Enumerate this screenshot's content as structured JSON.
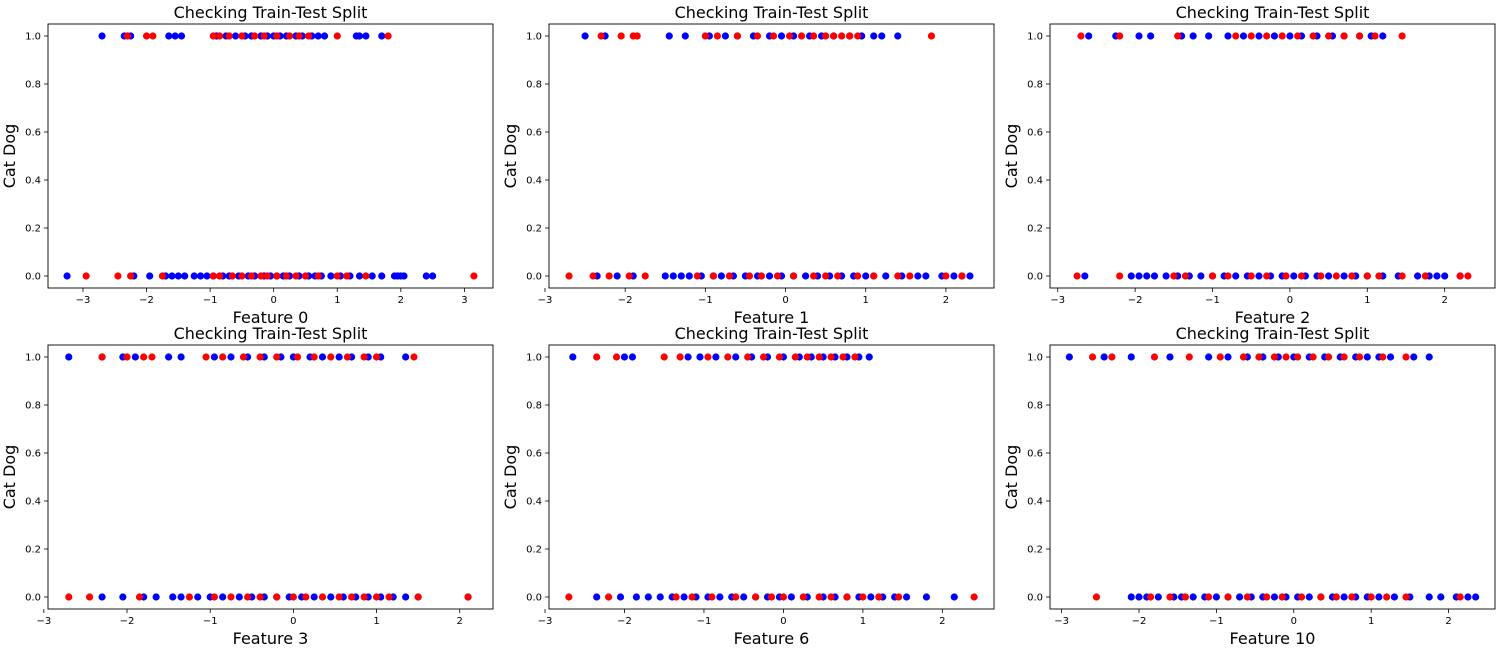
{
  "colors": {
    "train": "#0000ff",
    "test": "#ff0000",
    "axis": "#000000",
    "background": "#ffffff"
  },
  "chart_data": [
    {
      "type": "scatter",
      "title": "Checking Train-Test Split",
      "xlabel": "Feature 0",
      "ylabel": "Cat    Dog",
      "xlim": [
        -3.55,
        3.45
      ],
      "ylim": [
        -0.05,
        1.05
      ],
      "xticks": [
        -3,
        -2,
        -1,
        0,
        1,
        2,
        3
      ],
      "yticks": [
        0.0,
        0.2,
        0.4,
        0.6,
        0.8,
        1.0
      ],
      "ytick_labels": [
        "0.0",
        "0.2",
        "0.4",
        "0.6",
        "0.8",
        "1.0"
      ],
      "grid": false,
      "series": [
        {
          "color": "#0000ff",
          "x1": [
            -2.7,
            -2.35,
            -2.25,
            -1.65,
            -1.55,
            -1.45,
            -0.9,
            -0.75,
            -0.6,
            -0.45,
            -0.35,
            -0.2,
            -0.1,
            0.0,
            0.1,
            0.2,
            0.35,
            0.45,
            0.6,
            0.7,
            0.8,
            1.3,
            1.35,
            1.45,
            1.7
          ],
          "x0": [
            -3.25,
            -2.2,
            -1.95,
            -1.7,
            -1.6,
            -1.5,
            -1.4,
            -1.25,
            -1.15,
            -1.05,
            -0.95,
            -0.8,
            -0.7,
            -0.55,
            -0.4,
            -0.3,
            -0.15,
            -0.05,
            0.05,
            0.15,
            0.25,
            0.4,
            0.55,
            0.65,
            0.75,
            0.9,
            1.05,
            1.2,
            1.35,
            1.55,
            1.7,
            1.9,
            1.95,
            2.0,
            2.05,
            2.4,
            2.5
          ]
        },
        {
          "color": "#ff0000",
          "x1": [
            -2.3,
            -2.0,
            -1.9,
            -0.95,
            -0.85,
            -0.7,
            -0.5,
            -0.3,
            -0.15,
            0.05,
            0.25,
            0.4,
            0.55,
            1.0,
            1.8
          ],
          "x0": [
            -2.95,
            -2.45,
            -2.25,
            -1.75,
            -0.95,
            -0.85,
            -0.65,
            -0.5,
            -0.35,
            -0.2,
            -0.1,
            0.05,
            0.2,
            0.35,
            0.5,
            0.7,
            1.0,
            1.15,
            1.45,
            3.15
          ]
        }
      ]
    },
    {
      "type": "scatter",
      "title": "Checking Train-Test Split",
      "xlabel": "Feature 1",
      "ylabel": "Cat    Dog",
      "xlim": [
        -2.95,
        2.6
      ],
      "ylim": [
        -0.05,
        1.05
      ],
      "xticks": [
        -3,
        -2,
        -1,
        0,
        1,
        2
      ],
      "yticks": [
        0.0,
        0.2,
        0.4,
        0.6,
        0.8,
        1.0
      ],
      "ytick_labels": [
        "0.0",
        "0.2",
        "0.4",
        "0.6",
        "0.8",
        "1.0"
      ],
      "grid": false,
      "series": [
        {
          "color": "#0000ff",
          "x1": [
            -2.5,
            -2.25,
            -1.45,
            -1.25,
            -0.95,
            -0.75,
            -0.6,
            -0.4,
            -0.2,
            -0.05,
            0.1,
            0.3,
            0.45,
            0.6,
            0.8,
            0.95,
            1.1,
            1.2,
            1.4
          ],
          "x0": [
            -2.35,
            -2.1,
            -1.9,
            -1.5,
            -1.4,
            -1.3,
            -1.2,
            -1.05,
            -0.9,
            -0.8,
            -0.65,
            -0.5,
            -0.35,
            -0.2,
            -0.05,
            0.1,
            0.25,
            0.4,
            0.55,
            0.7,
            0.85,
            1.0,
            1.1,
            1.25,
            1.45,
            1.65,
            1.75,
            1.95,
            2.1,
            2.2,
            2.3
          ]
        },
        {
          "color": "#ff0000",
          "x1": [
            -2.3,
            -2.05,
            -1.9,
            -1.85,
            -1.0,
            -0.85,
            -0.6,
            -0.35,
            -0.15,
            0.05,
            0.2,
            0.35,
            0.5,
            0.6,
            0.7,
            0.8,
            0.9,
            1.82
          ],
          "x0": [
            -2.7,
            -2.4,
            -2.2,
            -1.95,
            -1.75,
            -1.1,
            -0.9,
            -0.7,
            -0.45,
            -0.3,
            -0.1,
            0.1,
            0.35,
            0.5,
            0.65,
            0.9,
            1.1,
            1.4,
            1.55,
            2.0,
            2.2
          ]
        }
      ]
    },
    {
      "type": "scatter",
      "title": "Checking Train-Test Split",
      "xlabel": "Feature 2",
      "ylabel": "Cat    Dog",
      "xlim": [
        -3.1,
        2.65
      ],
      "ylim": [
        -0.05,
        1.05
      ],
      "xticks": [
        -3,
        -2,
        -1,
        0,
        1,
        2
      ],
      "yticks": [
        0.0,
        0.2,
        0.4,
        0.6,
        0.8,
        1.0
      ],
      "ytick_labels": [
        "0.0",
        "0.2",
        "0.4",
        "0.6",
        "0.8",
        "1.0"
      ],
      "grid": false,
      "series": [
        {
          "color": "#0000ff",
          "x1": [
            -2.6,
            -2.25,
            -1.95,
            -1.8,
            -1.4,
            -1.25,
            -1.05,
            -0.8,
            -0.6,
            -0.4,
            -0.2,
            0.0,
            0.15,
            0.35,
            0.55,
            0.7,
            0.9,
            1.05,
            1.2
          ],
          "x0": [
            -2.65,
            -2.05,
            -1.95,
            -1.85,
            -1.75,
            -1.6,
            -1.45,
            -1.3,
            -1.15,
            -1.0,
            -0.85,
            -0.7,
            -0.55,
            -0.4,
            -0.25,
            -0.1,
            0.05,
            0.2,
            0.35,
            0.5,
            0.7,
            0.85,
            1.0,
            1.2,
            1.4,
            1.65,
            1.8,
            1.9,
            2.0,
            2.2
          ]
        },
        {
          "color": "#ff0000",
          "x1": [
            -2.7,
            -2.2,
            -1.45,
            -0.7,
            -0.5,
            -0.3,
            -0.1,
            0.1,
            0.3,
            0.5,
            0.7,
            0.9,
            1.1,
            1.45
          ],
          "x0": [
            -2.75,
            -2.2,
            -1.5,
            -1.35,
            -1.0,
            -0.8,
            -0.5,
            -0.3,
            -0.05,
            0.15,
            0.4,
            0.6,
            0.8,
            1.0,
            1.15,
            1.45,
            1.75,
            2.2,
            2.3
          ]
        }
      ]
    },
    {
      "type": "scatter",
      "title": "Checking Train-Test Split",
      "xlabel": "Feature 3",
      "ylabel": "Cat    Dog",
      "xlim": [
        -2.95,
        2.4
      ],
      "ylim": [
        -0.05,
        1.05
      ],
      "xticks": [
        -3,
        -2,
        -1,
        0,
        1,
        2
      ],
      "yticks": [
        0.0,
        0.2,
        0.4,
        0.6,
        0.8,
        1.0
      ],
      "ytick_labels": [
        "0.0",
        "0.2",
        "0.4",
        "0.6",
        "0.8",
        "1.0"
      ],
      "grid": false,
      "series": [
        {
          "color": "#0000ff",
          "x1": [
            -2.7,
            -2.3,
            -2.05,
            -1.9,
            -1.5,
            -1.35,
            -0.95,
            -0.75,
            -0.55,
            -0.35,
            -0.15,
            0.0,
            0.2,
            0.35,
            0.55,
            0.7,
            0.9,
            1.05,
            1.35
          ],
          "x0": [
            -2.3,
            -2.05,
            -1.8,
            -1.65,
            -1.45,
            -1.35,
            -1.15,
            -1.0,
            -0.85,
            -0.65,
            -0.5,
            -0.35,
            -0.2,
            -0.05,
            0.1,
            0.25,
            0.45,
            0.6,
            0.75,
            0.9,
            1.05,
            1.2,
            1.35,
            1.5,
            2.1
          ]
        },
        {
          "color": "#ff0000",
          "x1": [
            -2.3,
            -2.0,
            -1.8,
            -1.7,
            -1.05,
            -0.85,
            -0.6,
            -0.4,
            -0.2,
            0.05,
            0.25,
            0.45,
            0.65,
            0.85,
            1.0,
            1.45
          ],
          "x0": [
            -2.7,
            -2.45,
            -1.85,
            -1.25,
            -0.95,
            -0.75,
            -0.55,
            -0.4,
            -0.2,
            0.0,
            0.15,
            0.35,
            0.55,
            0.7,
            0.85,
            1.0,
            1.15,
            1.5,
            2.1
          ]
        }
      ]
    },
    {
      "type": "scatter",
      "title": "Checking Train-Test Split",
      "xlabel": "Feature 6",
      "ylabel": "Cat    Dog",
      "xlim": [
        -2.95,
        2.65
      ],
      "ylim": [
        -0.05,
        1.05
      ],
      "xticks": [
        -3,
        -2,
        -1,
        0,
        1,
        2
      ],
      "yticks": [
        0.0,
        0.2,
        0.4,
        0.6,
        0.8,
        1.0
      ],
      "ytick_labels": [
        "0.0",
        "0.2",
        "0.4",
        "0.6",
        "0.8",
        "1.0"
      ],
      "grid": false,
      "series": [
        {
          "color": "#0000ff",
          "x1": [
            -2.65,
            -2.0,
            -1.9,
            -1.2,
            -1.05,
            -0.85,
            -0.6,
            -0.4,
            -0.2,
            0.0,
            0.2,
            0.35,
            0.5,
            0.65,
            0.8,
            0.95,
            1.08
          ],
          "x0": [
            -2.35,
            -2.05,
            -1.85,
            -1.7,
            -1.55,
            -1.4,
            -1.25,
            -1.1,
            -0.95,
            -0.8,
            -0.65,
            -0.5,
            -0.35,
            -0.2,
            -0.05,
            0.1,
            0.3,
            0.5,
            0.65,
            0.8,
            0.95,
            1.1,
            1.25,
            1.4,
            1.55,
            1.8,
            2.15
          ]
        },
        {
          "color": "#ff0000",
          "x1": [
            -2.35,
            -2.1,
            -1.5,
            -1.3,
            -0.95,
            -0.7,
            -0.45,
            -0.25,
            -0.05,
            0.15,
            0.3,
            0.45,
            0.6,
            0.75,
            0.9
          ],
          "x0": [
            -2.7,
            -2.2,
            -1.35,
            -1.15,
            -0.9,
            -0.6,
            -0.35,
            -0.15,
            0.0,
            0.25,
            0.45,
            0.6,
            0.8,
            1.0,
            1.2,
            1.45,
            2.4
          ]
        }
      ]
    },
    {
      "type": "scatter",
      "title": "Checking Train-Test Split",
      "xlabel": "Feature 10",
      "ylabel": "Cat    Dog",
      "xlim": [
        -3.15,
        2.6
      ],
      "ylim": [
        -0.05,
        1.05
      ],
      "xticks": [
        -3,
        -2,
        -1,
        0,
        1,
        2
      ],
      "yticks": [
        0.0,
        0.2,
        0.4,
        0.6,
        0.8,
        1.0
      ],
      "ytick_labels": [
        "0.0",
        "0.2",
        "0.4",
        "0.6",
        "0.8",
        "1.0"
      ],
      "grid": false,
      "series": [
        {
          "color": "#0000ff",
          "x1": [
            -2.9,
            -2.45,
            -2.1,
            -1.6,
            -1.1,
            -0.85,
            -0.6,
            -0.4,
            -0.2,
            0.0,
            0.2,
            0.4,
            0.6,
            0.8,
            0.95,
            1.1,
            1.25,
            1.55,
            1.75
          ],
          "x0": [
            -2.1,
            -2.0,
            -1.9,
            -1.75,
            -1.55,
            -1.45,
            -1.3,
            -1.15,
            -1.0,
            -0.85,
            -0.7,
            -0.55,
            -0.4,
            -0.25,
            -0.1,
            0.05,
            0.2,
            0.35,
            0.5,
            0.65,
            0.8,
            0.95,
            1.1,
            1.3,
            1.5,
            1.75,
            1.9,
            2.1,
            2.25,
            2.35
          ]
        },
        {
          "color": "#ff0000",
          "x1": [
            -2.6,
            -2.35,
            -1.8,
            -1.35,
            -0.95,
            -0.65,
            -0.45,
            -0.25,
            -0.1,
            0.05,
            0.25,
            0.45,
            0.65,
            0.85,
            1.15,
            1.45
          ],
          "x0": [
            -2.55,
            -1.85,
            -1.6,
            -1.4,
            -1.1,
            -0.85,
            -0.6,
            -0.35,
            -0.15,
            0.1,
            0.35,
            0.55,
            0.75,
            1.0,
            1.2,
            1.45,
            2.15
          ]
        }
      ]
    }
  ]
}
